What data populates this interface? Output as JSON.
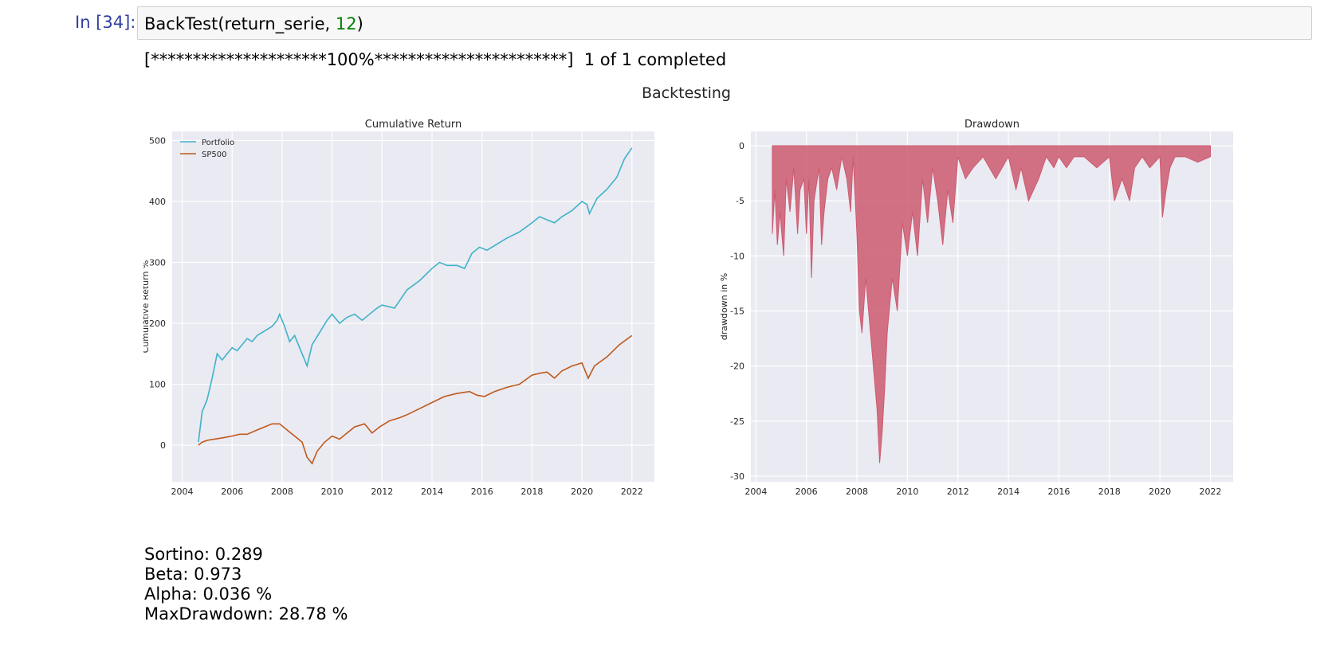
{
  "cell": {
    "prompt": "In [34]:",
    "code_fn": "BackTest(return_serie, ",
    "code_arg": "12",
    "code_end": ")"
  },
  "output": {
    "progress": "[*********************100%***********************]  1 of 1 completed",
    "figure_title": "Backtesting",
    "stats": [
      "Sortino: 0.289",
      "Beta: 0.973",
      "Alpha: 0.036 %",
      "MaxDrawdown: 28.78 %"
    ]
  },
  "chart_data": [
    {
      "type": "line",
      "title": "Cumulative Return",
      "xlabel": "",
      "ylabel": "Cumulative Return %",
      "xlim": [
        2003.6,
        2022.9
      ],
      "ylim": [
        -60,
        515
      ],
      "xticks": [
        2004,
        2006,
        2008,
        2010,
        2012,
        2014,
        2016,
        2018,
        2020,
        2022
      ],
      "yticks": [
        0,
        100,
        200,
        300,
        400,
        500
      ],
      "grid": true,
      "legend": "top-left",
      "series": [
        {
          "name": "Portfolio",
          "color": "#3fb2c9",
          "x": [
            2004.65,
            2004.8,
            2005.0,
            2005.2,
            2005.4,
            2005.6,
            2005.8,
            2006.0,
            2006.2,
            2006.4,
            2006.6,
            2006.8,
            2007.0,
            2007.2,
            2007.4,
            2007.6,
            2007.8,
            2007.9,
            2008.1,
            2008.3,
            2008.5,
            2008.7,
            2008.9,
            2009.0,
            2009.2,
            2009.5,
            2009.8,
            2010.0,
            2010.3,
            2010.6,
            2010.9,
            2011.2,
            2011.5,
            2011.8,
            2012.0,
            2012.5,
            2013.0,
            2013.5,
            2014.0,
            2014.3,
            2014.6,
            2015.0,
            2015.3,
            2015.6,
            2015.9,
            2016.2,
            2016.6,
            2017.0,
            2017.5,
            2018.0,
            2018.3,
            2018.6,
            2018.9,
            2019.2,
            2019.6,
            2020.0,
            2020.2,
            2020.3,
            2020.6,
            2021.0,
            2021.4,
            2021.7,
            2022.0
          ],
          "values": [
            5,
            55,
            75,
            110,
            150,
            140,
            150,
            160,
            155,
            165,
            175,
            170,
            180,
            185,
            190,
            195,
            205,
            215,
            195,
            170,
            180,
            160,
            140,
            130,
            165,
            185,
            205,
            215,
            200,
            210,
            215,
            205,
            215,
            225,
            230,
            225,
            255,
            270,
            290,
            300,
            295,
            295,
            290,
            315,
            325,
            320,
            330,
            340,
            350,
            365,
            375,
            370,
            365,
            375,
            385,
            400,
            395,
            380,
            405,
            420,
            440,
            470,
            488
          ]
        },
        {
          "name": "SP500",
          "color": "#c0591b",
          "x": [
            2004.65,
            2004.8,
            2005.0,
            2005.3,
            2005.6,
            2006.0,
            2006.3,
            2006.6,
            2007.0,
            2007.3,
            2007.6,
            2007.9,
            2008.2,
            2008.5,
            2008.8,
            2009.0,
            2009.2,
            2009.4,
            2009.7,
            2010.0,
            2010.3,
            2010.6,
            2010.9,
            2011.3,
            2011.6,
            2011.9,
            2012.3,
            2012.7,
            2013.0,
            2013.5,
            2014.0,
            2014.5,
            2015.0,
            2015.5,
            2015.8,
            2016.1,
            2016.5,
            2017.0,
            2017.5,
            2018.0,
            2018.3,
            2018.6,
            2018.9,
            2019.2,
            2019.6,
            2020.0,
            2020.15,
            2020.25,
            2020.5,
            2021.0,
            2021.5,
            2022.0
          ],
          "values": [
            0,
            5,
            8,
            10,
            12,
            15,
            18,
            18,
            25,
            30,
            35,
            35,
            25,
            15,
            5,
            -20,
            -30,
            -10,
            5,
            15,
            10,
            20,
            30,
            35,
            20,
            30,
            40,
            45,
            50,
            60,
            70,
            80,
            85,
            88,
            82,
            80,
            88,
            95,
            100,
            115,
            118,
            120,
            110,
            122,
            130,
            135,
            120,
            110,
            130,
            145,
            165,
            180
          ]
        }
      ]
    },
    {
      "type": "area",
      "title": "Drawdown",
      "xlabel": "",
      "ylabel": "drawdown in %",
      "xlim": [
        2003.8,
        2022.9
      ],
      "ylim": [
        -30.5,
        1.3
      ],
      "xticks": [
        2004,
        2006,
        2008,
        2010,
        2012,
        2014,
        2016,
        2018,
        2020,
        2022
      ],
      "yticks": [
        0,
        -5,
        -10,
        -15,
        -20,
        -25,
        -30
      ],
      "grid": true,
      "series": [
        {
          "name": "",
          "color": "#cd5a70",
          "x": [
            2004.65,
            2004.75,
            2004.85,
            2004.95,
            2005.1,
            2005.2,
            2005.35,
            2005.5,
            2005.65,
            2005.75,
            2005.9,
            2006.0,
            2006.1,
            2006.2,
            2006.3,
            2006.5,
            2006.6,
            2006.7,
            2006.85,
            2007.0,
            2007.2,
            2007.4,
            2007.6,
            2007.75,
            2007.85,
            2008.0,
            2008.1,
            2008.2,
            2008.35,
            2008.5,
            2008.65,
            2008.8,
            2008.9,
            2009.0,
            2009.1,
            2009.2,
            2009.4,
            2009.6,
            2009.8,
            2010.0,
            2010.2,
            2010.4,
            2010.6,
            2010.8,
            2011.0,
            2011.2,
            2011.4,
            2011.6,
            2011.8,
            2012.0,
            2012.3,
            2012.6,
            2013.0,
            2013.5,
            2014.0,
            2014.3,
            2014.5,
            2014.8,
            2015.2,
            2015.5,
            2015.8,
            2016.0,
            2016.3,
            2016.6,
            2017.0,
            2017.5,
            2018.0,
            2018.2,
            2018.5,
            2018.8,
            2019.0,
            2019.3,
            2019.6,
            2020.0,
            2020.1,
            2020.25,
            2020.4,
            2020.6,
            2021.0,
            2021.5,
            2022.0
          ],
          "values": [
            -8,
            -4,
            -9,
            -6,
            -10,
            -3,
            -6,
            -2,
            -8,
            -4,
            -3,
            -8,
            -3,
            -12,
            -5,
            -2,
            -9,
            -6,
            -3,
            -2,
            -4,
            -1,
            -3,
            -6,
            -1,
            -8,
            -15,
            -17,
            -12,
            -16,
            -20,
            -24,
            -28.8,
            -26,
            -22,
            -17,
            -12,
            -15,
            -7,
            -10,
            -6,
            -10,
            -3,
            -7,
            -2,
            -5,
            -9,
            -4,
            -7,
            -1,
            -3,
            -2,
            -1,
            -3,
            -1,
            -4,
            -2,
            -5,
            -3,
            -1,
            -2,
            -1,
            -2,
            -1,
            -1,
            -2,
            -1,
            -5,
            -3,
            -5,
            -2,
            -1,
            -2,
            -1,
            -6.5,
            -4,
            -2,
            -1,
            -1,
            -1.5,
            -1
          ]
        }
      ]
    }
  ]
}
